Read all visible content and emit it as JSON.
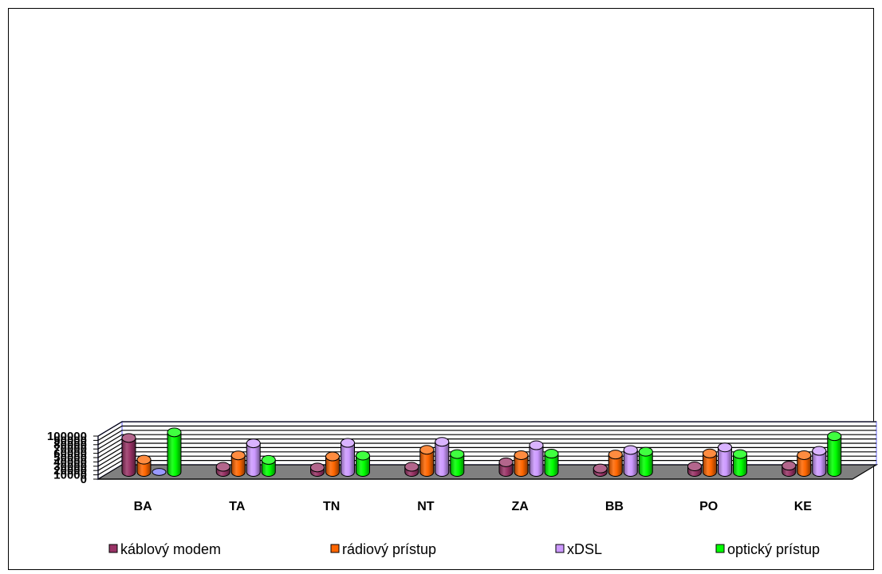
{
  "chart_data": {
    "type": "bar",
    "title": "",
    "xlabel": "",
    "ylabel": "",
    "ylim": [
      0,
      100000
    ],
    "y_ticks": [
      "0",
      "10000",
      "20000",
      "30000",
      "40000",
      "50000",
      "60000",
      "70000",
      "80000",
      "90000",
      "100000"
    ],
    "categories": [
      "BA",
      "TA",
      "TN",
      "NT",
      "ZA",
      "BB",
      "PO",
      "KE"
    ],
    "series": [
      {
        "name": "káblový modem",
        "color": "#993366",
        "values": [
          79000,
          12000,
          10500,
          12000,
          22500,
          8000,
          13000,
          14500
        ]
      },
      {
        "name": "rádiový prístup",
        "color": "#ff6600",
        "values": [
          28500,
          38500,
          36000,
          51500,
          39000,
          40500,
          43000,
          39000
        ]
      },
      {
        "name": "xDSL",
        "color": "#cc99ff",
        "values": [
          0,
          66500,
          67500,
          70000,
          62000,
          51000,
          57000,
          49000
        ]
      },
      {
        "name": "optický prístup",
        "color": "#00ff00",
        "values": [
          92000,
          28000,
          38000,
          41500,
          42500,
          47000,
          41500,
          83000
        ]
      }
    ],
    "grid": true,
    "legend": "bottom",
    "style": "3d-cylinder"
  }
}
